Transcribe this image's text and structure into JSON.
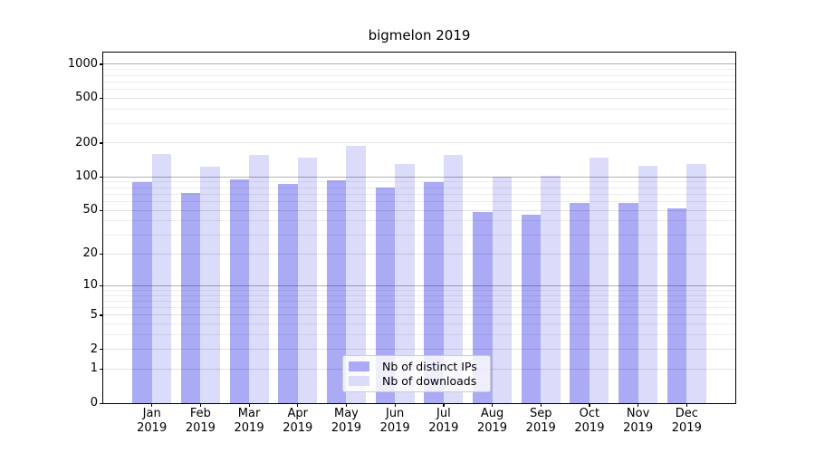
{
  "chart_data": {
    "type": "bar",
    "title": "bigmelon 2019",
    "categories": [
      "Jan",
      "Feb",
      "Mar",
      "Apr",
      "May",
      "Jun",
      "Jul",
      "Aug",
      "Sep",
      "Oct",
      "Nov",
      "Dec"
    ],
    "category_year": "2019",
    "series": [
      {
        "name": "Nb of distinct IPs",
        "color": "#aaaaf5",
        "values": [
          90,
          71,
          94,
          86,
          93,
          80,
          90,
          48,
          46,
          58,
          58,
          52
        ]
      },
      {
        "name": "Nb of downloads",
        "color": "#dbdbfa",
        "values": [
          159,
          122,
          157,
          149,
          189,
          129,
          158,
          101,
          102,
          148,
          125,
          130
        ]
      }
    ],
    "xlabel": "",
    "ylabel": "",
    "yscale": "log1p",
    "ylim": [
      0,
      1271
    ],
    "yticks": [
      1000,
      500,
      200,
      100,
      50,
      20,
      10,
      5,
      2,
      1,
      0
    ],
    "minor_yticks": [
      3,
      4,
      6,
      7,
      8,
      9,
      30,
      40,
      60,
      70,
      80,
      90,
      300,
      400,
      600,
      700,
      800,
      900
    ],
    "grid": true,
    "legend": {
      "position": "lower center",
      "entries": [
        "Nb of distinct IPs",
        "Nb of downloads"
      ]
    }
  },
  "colors": {
    "background": "#ffffff",
    "axis": "#000000",
    "bar_distinct_ips": "#aaaaf5",
    "bar_downloads": "#dbdbfa",
    "grid_major": "rgba(0,0,0,0.30)",
    "grid_labeled": "rgba(0,0,0,0.115)",
    "grid_minor": "rgba(0,0,0,0.07)",
    "legend_border": "#cccccc"
  }
}
